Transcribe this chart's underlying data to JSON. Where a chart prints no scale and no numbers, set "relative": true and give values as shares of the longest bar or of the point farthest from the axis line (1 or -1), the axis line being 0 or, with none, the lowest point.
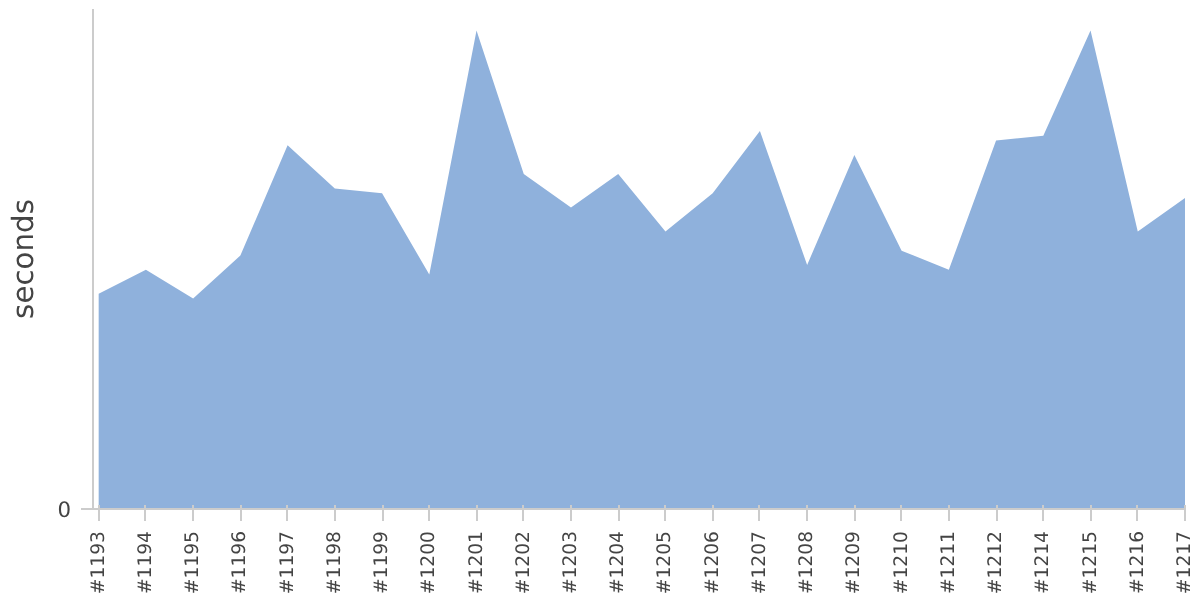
{
  "chart_data": {
    "type": "area",
    "ylabel": "seconds",
    "relative": true,
    "annotations": [
      "0"
    ],
    "grid": false,
    "color": "#8fb1dc",
    "categories": [
      "#1193",
      "#1194",
      "#1195",
      "#1196",
      "#1197",
      "#1198",
      "#1199",
      "#1200",
      "#1201",
      "#1202",
      "#1203",
      "#1204",
      "#1205",
      "#1206",
      "#1207",
      "#1208",
      "#1209",
      "#1210",
      "#1211",
      "#1212",
      "#1214",
      "#1215",
      "#1216",
      "#1217"
    ],
    "values": [
      0.45,
      0.5,
      0.44,
      0.53,
      0.76,
      0.67,
      0.66,
      0.49,
      1,
      0.7,
      0.63,
      0.7,
      0.58,
      0.66,
      0.79,
      0.51,
      0.74,
      0.54,
      0.5,
      0.77,
      0.78,
      1,
      0.58,
      0.65
    ]
  }
}
